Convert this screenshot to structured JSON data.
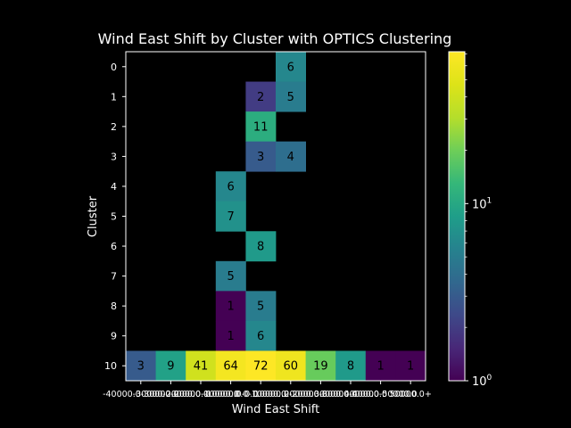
{
  "chart_data": {
    "type": "heatmap",
    "title": "Wind East Shift by Cluster with OPTICS Clustering",
    "xlabel": "Wind East Shift",
    "ylabel": "Cluster",
    "x_categories": [
      "-40000.0-30000.0",
      "-30000.0-20000.0",
      "-20000.0-10000.0",
      "-10000.0-0.0",
      "0.0-10000.0",
      "10000.0-20000.0",
      "20000.0-30000.0",
      "30000.0-40000.0",
      "40000.0-50000.0",
      "50000.0+"
    ],
    "x_tick_labels": [
      "-40000.0-30000.0",
      "-30000.0-20000.0",
      "-20000.0-10000.0",
      "-10000.0-0.0",
      "0.0-10000.0",
      "10000.0-20000.0",
      "20000.0-30000.0",
      "30000.0-40000.0",
      "40000.0-50000.0",
      "50000.0+"
    ],
    "y_categories": [
      "0",
      "1",
      "2",
      "3",
      "4",
      "5",
      "6",
      "7",
      "8",
      "9",
      "10"
    ],
    "cells": [
      {
        "row": 0,
        "col": 5,
        "value": 6
      },
      {
        "row": 1,
        "col": 4,
        "value": 2
      },
      {
        "row": 1,
        "col": 5,
        "value": 5
      },
      {
        "row": 2,
        "col": 4,
        "value": 11
      },
      {
        "row": 3,
        "col": 4,
        "value": 3
      },
      {
        "row": 3,
        "col": 5,
        "value": 4
      },
      {
        "row": 4,
        "col": 3,
        "value": 6
      },
      {
        "row": 5,
        "col": 3,
        "value": 7
      },
      {
        "row": 6,
        "col": 4,
        "value": 8
      },
      {
        "row": 7,
        "col": 3,
        "value": 5
      },
      {
        "row": 8,
        "col": 3,
        "value": 1
      },
      {
        "row": 8,
        "col": 4,
        "value": 5
      },
      {
        "row": 9,
        "col": 3,
        "value": 1
      },
      {
        "row": 9,
        "col": 4,
        "value": 6
      },
      {
        "row": 10,
        "col": 0,
        "value": 3
      },
      {
        "row": 10,
        "col": 1,
        "value": 9
      },
      {
        "row": 10,
        "col": 2,
        "value": 41
      },
      {
        "row": 10,
        "col": 3,
        "value": 64
      },
      {
        "row": 10,
        "col": 4,
        "value": 72
      },
      {
        "row": 10,
        "col": 5,
        "value": 60
      },
      {
        "row": 10,
        "col": 6,
        "value": 19
      },
      {
        "row": 10,
        "col": 7,
        "value": 8
      },
      {
        "row": 10,
        "col": 8,
        "value": 1
      },
      {
        "row": 10,
        "col": 9,
        "value": 1
      }
    ],
    "colorbar": {
      "scale": "log",
      "colormap": "viridis",
      "range": [
        1,
        72
      ],
      "major_ticks": [
        1,
        10
      ],
      "major_tick_labels": [
        "10",
        "10"
      ],
      "major_tick_exponents": [
        "0",
        "1"
      ]
    },
    "background_color": "#000000",
    "text_color": "#ffffff",
    "grid": false
  }
}
